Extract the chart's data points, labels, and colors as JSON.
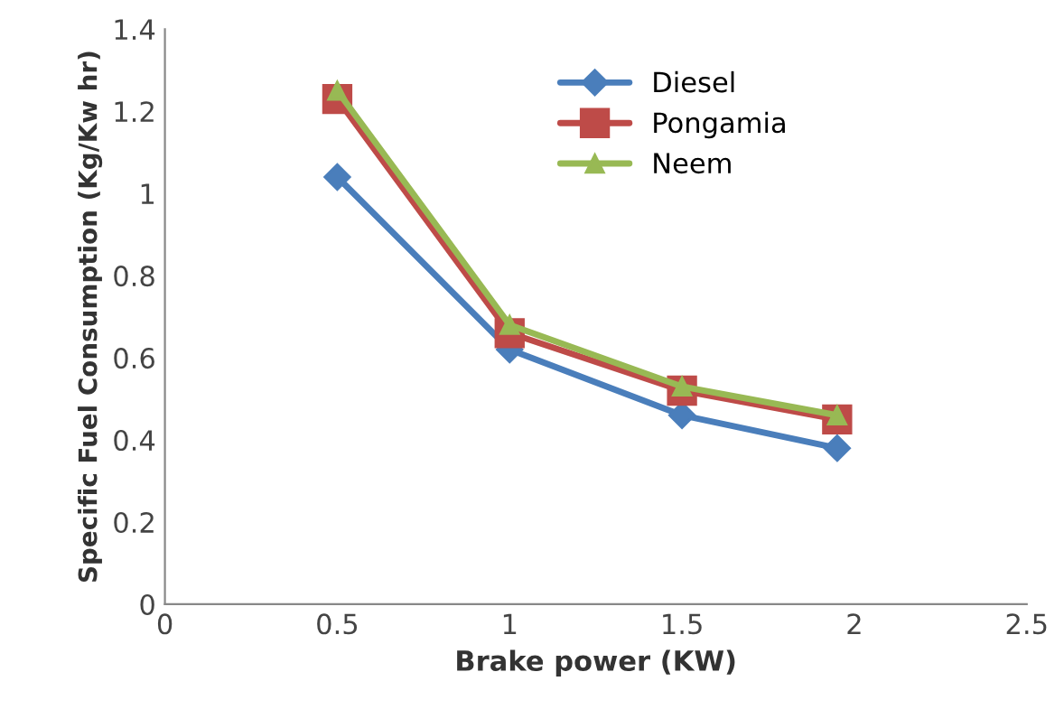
{
  "chart_data": {
    "type": "line",
    "xlabel": "Brake power (KW)",
    "ylabel": "Specific Fuel Consumption (Kg/Kw hr)",
    "x": [
      0.5,
      1,
      1.5,
      1.95
    ],
    "series": [
      {
        "name": "Diesel",
        "color": "#4a7ebb",
        "marker": "diamond",
        "values": [
          1.04,
          0.62,
          0.46,
          0.38
        ]
      },
      {
        "name": "Pongamia",
        "color": "#be4b48",
        "marker": "square",
        "values": [
          1.23,
          0.66,
          0.52,
          0.45
        ]
      },
      {
        "name": "Neem",
        "color": "#98b954",
        "marker": "triangle",
        "values": [
          1.25,
          0.68,
          0.53,
          0.46
        ]
      }
    ],
    "xlim": [
      0,
      2.5
    ],
    "xticks": [
      0,
      0.5,
      1,
      1.5,
      2,
      2.5
    ],
    "ylim": [
      0,
      1.4
    ],
    "yticks": [
      0,
      0.2,
      0.4,
      0.6,
      0.8,
      1,
      1.2,
      1.4
    ],
    "grid": false,
    "legend": "top right",
    "line_style": "solid"
  }
}
